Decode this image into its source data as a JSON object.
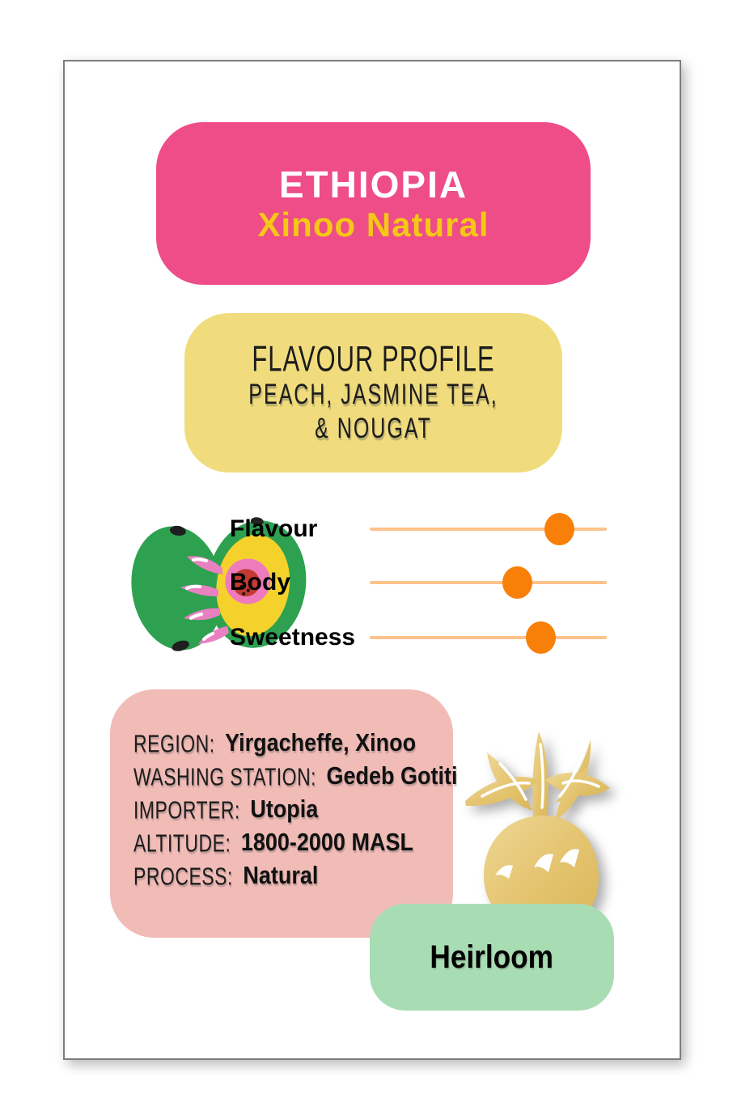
{
  "card": {
    "header": {
      "title": "ETHIOPIA",
      "subtitle": "Xinoo Natural",
      "bg_color": "#EE4D87",
      "title_color": "#FFFFFF",
      "subtitle_color": "#F5C716"
    },
    "flavour_profile": {
      "heading": "FLAVOUR PROFILE",
      "line1": "PEACH, JASMINE TEA,",
      "line2": "& NOUGAT",
      "bg_color": "#F1DC7D"
    },
    "sliders": {
      "track_color": "#FFC28A",
      "dot_color": "#F87F08",
      "items": [
        {
          "label": "Flavour",
          "level": 0.8
        },
        {
          "label": "Body",
          "level": 0.62
        },
        {
          "label": "Sweetness",
          "level": 0.72
        }
      ]
    },
    "info": {
      "bg_color": "#F1BBB6",
      "rows": [
        {
          "label": "REGION:",
          "value": "Yirgacheffe, Xinoo"
        },
        {
          "label": "WASHING STATION:",
          "value": "Gedeb Gotiti"
        },
        {
          "label": "IMPORTER:",
          "value": "Utopia"
        },
        {
          "label": "ALTITUDE:",
          "value": "1800-2000 MASL"
        },
        {
          "label": "PROCESS:",
          "value": "Natural"
        }
      ]
    },
    "variety": {
      "label": "Heirloom",
      "bg_color": "#A8DDB4"
    },
    "illustrations": {
      "avocado": "avocado-illustration",
      "pineapple": "pineapple-illustration",
      "avocado_green": "#2EA150",
      "pineapple_gold": "#E4C36E"
    }
  },
  "chart_data": {
    "type": "bar",
    "title": "Flavour attribute sliders",
    "categories": [
      "Flavour",
      "Body",
      "Sweetness"
    ],
    "values": [
      0.8,
      0.62,
      0.72
    ],
    "ylim": [
      0,
      1
    ],
    "legend_position": "none"
  }
}
